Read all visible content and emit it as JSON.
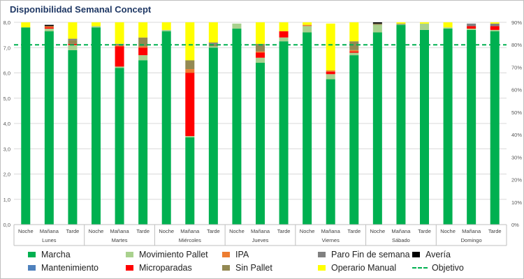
{
  "chart_data": {
    "type": "bar",
    "stacked": true,
    "title": "Disponibilidad Semanal Concept",
    "groups": [
      "Lunes",
      "Martes",
      "Miércoles",
      "Jueves",
      "Viernes",
      "Sábado",
      "Domingo"
    ],
    "shifts": [
      "Noche",
      "Mañana",
      "Tarde"
    ],
    "categories": [
      "Lunes Noche",
      "Lunes Mañana",
      "Lunes Tarde",
      "Martes Noche",
      "Martes Mañana",
      "Martes Tarde",
      "Miércoles Noche",
      "Miércoles Mañana",
      "Miércoles Tarde",
      "Jueves Noche",
      "Jueves Mañana",
      "Jueves Tarde",
      "Viernes Noche",
      "Viernes Mañana",
      "Viernes Tarde",
      "Sábado Noche",
      "Sábado Mañana",
      "Sábado Tarde",
      "Domingo Noche",
      "Domingo Mañana",
      "Domingo Tarde"
    ],
    "ylim": [
      0,
      8
    ],
    "yticks": [
      "0,0",
      "1,0",
      "2,0",
      "3,0",
      "4,0",
      "5,0",
      "6,0",
      "7,0",
      "8,0"
    ],
    "y2lim": [
      0,
      90
    ],
    "y2ticks": [
      "0%",
      "10%",
      "20%",
      "30%",
      "40%",
      "50%",
      "60%",
      "70%",
      "80%",
      "90%"
    ],
    "target": {
      "name": "Objetivo",
      "value": 80,
      "unit": "%",
      "color": "#00b050"
    },
    "series": [
      {
        "name": "Marcha",
        "color": "#00b050",
        "values": [
          7.8,
          7.65,
          6.9,
          7.8,
          6.2,
          6.5,
          7.65,
          3.45,
          7.0,
          7.75,
          6.4,
          7.25,
          7.6,
          5.75,
          6.7,
          7.6,
          7.9,
          7.7,
          7.75,
          7.7,
          7.65
        ]
      },
      {
        "name": "Mantenimiento",
        "color": "#4f81bd",
        "values": [
          0,
          0,
          0,
          0,
          0,
          0,
          0,
          0,
          0,
          0,
          0,
          0,
          0,
          0,
          0,
          0,
          0,
          0,
          0,
          0,
          0
        ]
      },
      {
        "name": "Movimiento Pallet",
        "color": "#a9d18e",
        "values": [
          0,
          0.1,
          0.2,
          0.05,
          0.05,
          0.2,
          0.05,
          0.05,
          0.05,
          0.2,
          0.2,
          0.15,
          0.25,
          0.2,
          0.1,
          0.3,
          0.02,
          0.25,
          0.05,
          0.05,
          0.05
        ]
      },
      {
        "name": "Microparadas",
        "color": "#ff0000",
        "values": [
          0,
          0.05,
          0.05,
          0,
          0.8,
          0.3,
          0,
          2.5,
          0,
          0,
          0.2,
          0.25,
          0,
          0.1,
          0.05,
          0,
          0,
          0,
          0,
          0.1,
          0.15
        ]
      },
      {
        "name": "IPA",
        "color": "#ed7d31",
        "values": [
          0,
          0.05,
          0,
          0,
          0.05,
          0.05,
          0,
          0.15,
          0,
          0,
          0.05,
          0,
          0.05,
          0.05,
          0.05,
          0,
          0,
          0,
          0,
          0,
          0
        ]
      },
      {
        "name": "Sin Pallet",
        "color": "#938953",
        "values": [
          0,
          0,
          0.15,
          0,
          0,
          0.35,
          0,
          0.35,
          0.1,
          0,
          0.3,
          0,
          0,
          0,
          0.35,
          0.05,
          0.03,
          0,
          0,
          0,
          0
        ]
      },
      {
        "name": "Paro Fin de semana",
        "color": "#808080",
        "values": [
          0,
          0,
          0.05,
          0,
          0.05,
          0,
          0,
          0,
          0.05,
          0,
          0,
          0,
          0,
          0,
          0,
          0,
          0,
          0,
          0,
          0.1,
          0.1
        ]
      },
      {
        "name": "Operario Manual",
        "color": "#ffff00",
        "values": [
          0.2,
          0,
          0.65,
          0.15,
          0.85,
          0.6,
          0.3,
          1.5,
          0.8,
          0,
          0.85,
          0.35,
          0.1,
          1.85,
          0.75,
          0,
          0.05,
          0.05,
          0.2,
          0,
          0.05
        ]
      },
      {
        "name": "Avería",
        "color": "#000000",
        "values": [
          0,
          0.05,
          0,
          0,
          0,
          0,
          0,
          0,
          0,
          0,
          0,
          0,
          0,
          0,
          0,
          0.05,
          0,
          0,
          0,
          0,
          0
        ]
      }
    ],
    "legend": {
      "placement": "bottom",
      "order": [
        "Marcha",
        "Movimiento Pallet",
        "IPA",
        "Paro Fin de semana",
        "Avería",
        "Mantenimiento",
        "Microparadas",
        "Sin Pallet",
        "Operario Manual",
        "Objetivo"
      ]
    }
  }
}
